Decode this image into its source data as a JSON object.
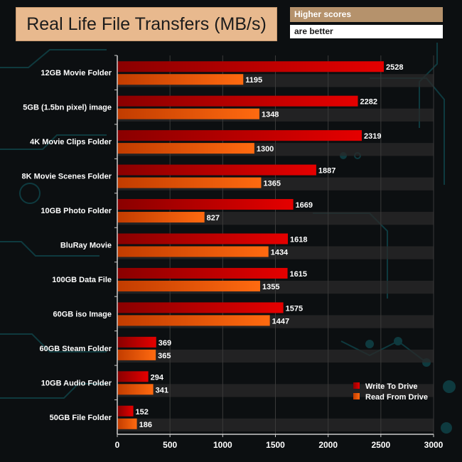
{
  "header": {
    "title": "Real Life File Transfers (MB/s)",
    "note_line1": "Higher scores",
    "note_line2": "are better"
  },
  "colors": {
    "write": "#e50000",
    "write_dark": "#8a0000",
    "read": "#ff6a10",
    "read_dark": "#c23c00",
    "axis": "#cccccc",
    "text": "#ffffff",
    "band": "#2a2a2a"
  },
  "chart_data": {
    "type": "bar",
    "orientation": "horizontal",
    "title": "Real Life File Transfers (MB/s)",
    "xlabel": "",
    "ylabel": "",
    "xlim": [
      0,
      3000
    ],
    "xticks": [
      0,
      500,
      1000,
      1500,
      2000,
      2500,
      3000
    ],
    "categories": [
      "12GB Movie Folder",
      "5GB (1.5bn pixel) image",
      "4K Movie Clips Folder",
      "8K Movie Scenes Folder",
      "10GB Photo Folder",
      "BluRay Movie",
      "100GB Data File",
      "60GB iso Image",
      "60GB Steam Folder",
      "10GB Audio Folder",
      "50GB File Folder"
    ],
    "series": [
      {
        "name": "Write To  Drive",
        "values": [
          2528,
          2282,
          2319,
          1887,
          1669,
          1618,
          1615,
          1575,
          369,
          294,
          152
        ]
      },
      {
        "name": "Read From  Drive",
        "values": [
          1195,
          1348,
          1300,
          1365,
          827,
          1434,
          1355,
          1447,
          365,
          341,
          186
        ]
      }
    ],
    "legend_position": "bottom-right",
    "data_labels": true
  }
}
